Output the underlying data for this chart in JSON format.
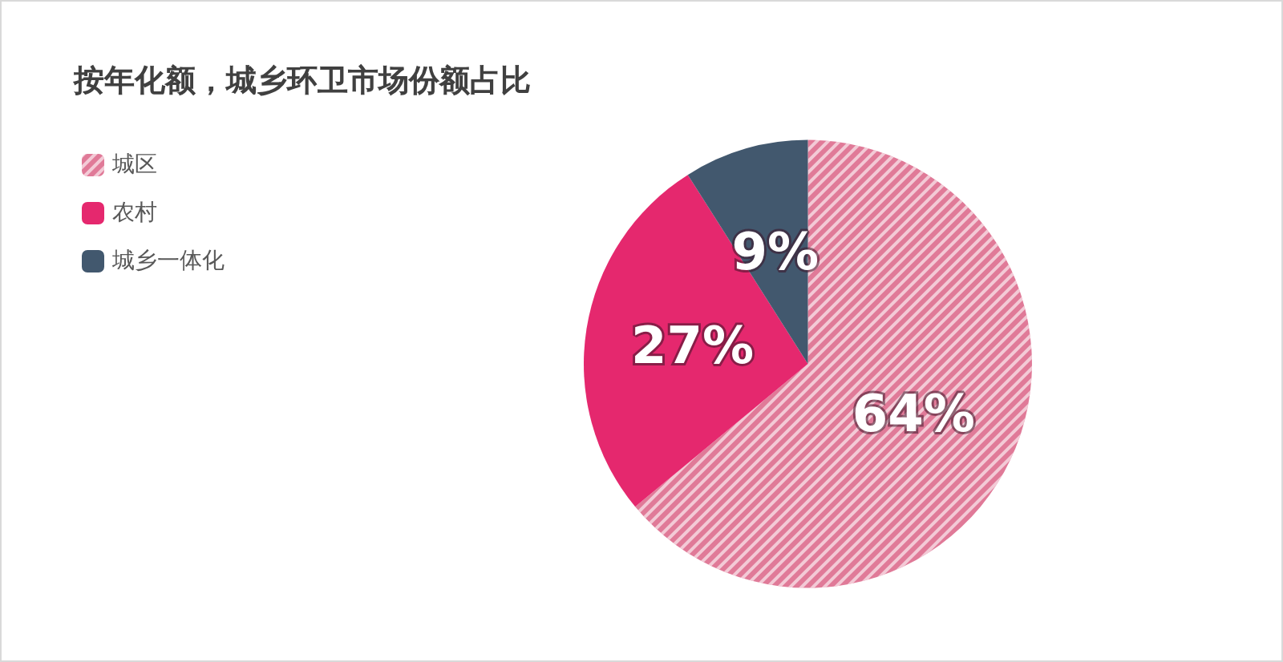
{
  "chart_data": {
    "type": "pie",
    "title": "按年化额，城乡环卫市场份额占比",
    "categories": [
      "城区",
      "农村",
      "城乡一体化"
    ],
    "values": [
      64,
      27,
      9
    ],
    "colors": [
      "#e07a98",
      "#e5286e",
      "#42586e"
    ],
    "value_labels": [
      "64%",
      "27%",
      "9%"
    ],
    "legend": "top left"
  }
}
